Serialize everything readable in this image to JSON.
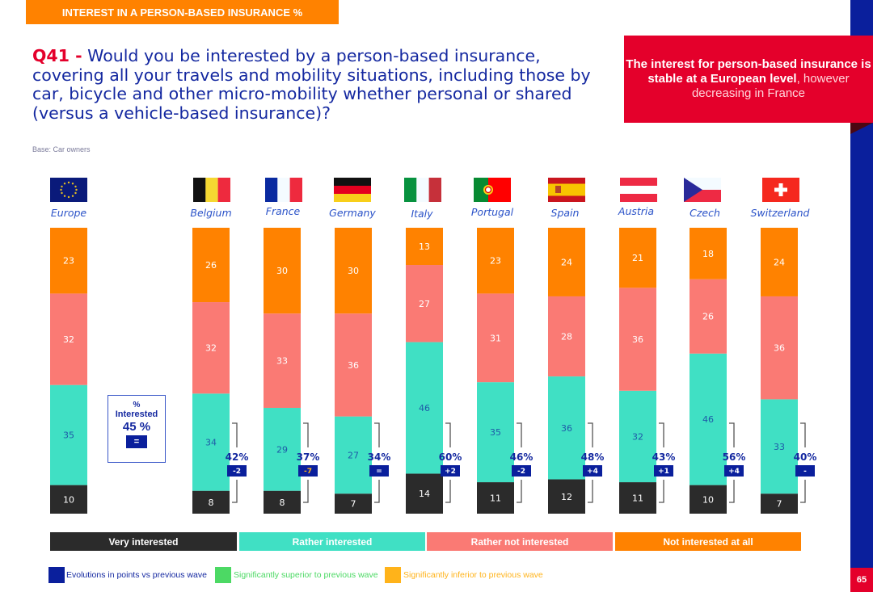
{
  "header": {
    "title": "INTEREST IN A PERSON-BASED INSURANCE %"
  },
  "question": {
    "id": "Q41 -",
    "text": " Would you be interested by a person-based insurance, covering all your travels and mobility situations, including those by car, bicycle and other micro-mobility whether personal or shared (versus a vehicle-based insurance)?",
    "base": "Base: Car owners"
  },
  "insight": {
    "bold": "The interest for person-based insurance is stable at a European level",
    "normal": ", however decreasing in France"
  },
  "page_number": "65",
  "colors": {
    "very_interested": "#2B2B2B",
    "rather_interested": "#40E0C4",
    "rather_not_interested": "#FA7A74",
    "not_interested_at_all": "#FF8200",
    "evolution_box": "#0A1F9C",
    "sig_superior": "#4CD964",
    "sig_inferior": "#FFB31A",
    "brand_blue": "#1428A0",
    "brand_red": "#E4002B"
  },
  "europe_summary": {
    "pct_label": "%",
    "label": "Interested",
    "value": "45 %",
    "evolution": "="
  },
  "chart_data": {
    "type": "bar",
    "stacked": true,
    "orientation": "vertical",
    "title": "INTEREST IN A PERSON-BASED INSURANCE %",
    "xlabel": "",
    "ylabel": "",
    "ylim": [
      0,
      100
    ],
    "grid": false,
    "legend_position": "bottom",
    "categories": [
      "Europe",
      "Belgium",
      "France",
      "Germany",
      "Italy",
      "Portugal",
      "Spain",
      "Austria",
      "Czech",
      "Switzerland"
    ],
    "series": [
      {
        "name": "Very interested",
        "values": [
          10,
          8,
          8,
          7,
          14,
          11,
          12,
          11,
          10,
          7
        ]
      },
      {
        "name": "Rather interested",
        "values": [
          35,
          34,
          29,
          27,
          46,
          35,
          36,
          32,
          46,
          33
        ]
      },
      {
        "name": "Rather not interested",
        "values": [
          32,
          32,
          33,
          36,
          27,
          31,
          28,
          36,
          26,
          36
        ]
      },
      {
        "name": "Not interested at all",
        "values": [
          23,
          26,
          30,
          30,
          13,
          23,
          24,
          21,
          18,
          24
        ]
      }
    ],
    "total_interested": [
      "45 %",
      "42%",
      "37%",
      "34%",
      "60%",
      "46%",
      "48%",
      "43%",
      "56%",
      "40%"
    ],
    "evolution": [
      "=",
      "-2",
      "-7",
      "=",
      "+2",
      "-2",
      "+4",
      "+1",
      "+4",
      "-"
    ],
    "evolution_significance": [
      "none",
      "none",
      "inferior",
      "none",
      "none",
      "none",
      "none",
      "none",
      "none",
      "none"
    ]
  },
  "legend": {
    "categories": [
      "Very interested",
      "Rather interested",
      "Rather not interested",
      "Not interested at all"
    ],
    "keys": [
      {
        "label": "Evolutions in points vs previous wave",
        "color": "#0A1F9C"
      },
      {
        "label": "Significantly superior to previous wave",
        "color": "#4CD964"
      },
      {
        "label": "Significantly inferior to previous wave",
        "color": "#FFB31A"
      }
    ]
  },
  "flags": [
    "eu-flag-icon",
    "belgium-flag-icon",
    "france-flag-icon",
    "germany-flag-icon",
    "italy-flag-icon",
    "portugal-flag-icon",
    "spain-flag-icon",
    "austria-flag-icon",
    "czech-flag-icon",
    "switzerland-flag-icon"
  ]
}
